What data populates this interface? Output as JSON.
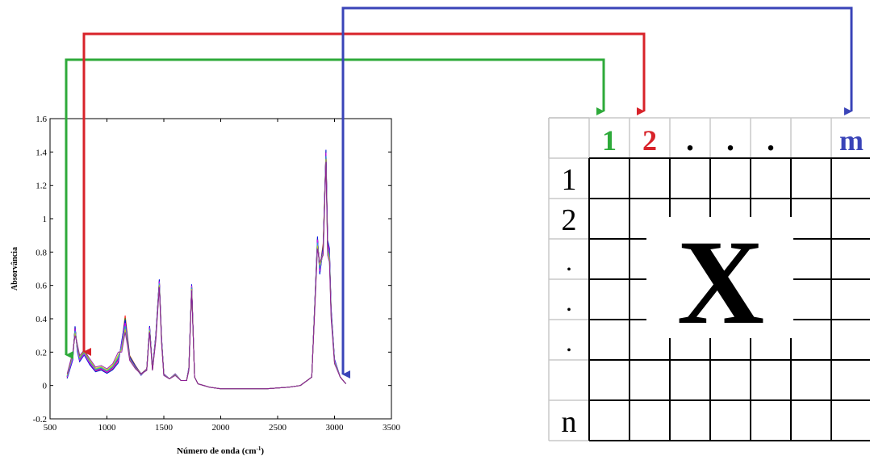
{
  "chart_data": {
    "type": "line",
    "xlabel": "Número de onda (cm",
    "xlabel_sup": "-1",
    "xlabel_close": ")",
    "ylabel": "Absorvância",
    "xlim": [
      500,
      3500
    ],
    "ylim": [
      -0.2,
      1.6
    ],
    "x_ticks": [
      500,
      1000,
      1500,
      2000,
      2500,
      3000,
      3500
    ],
    "y_ticks": [
      -0.2,
      0,
      0.2,
      0.4,
      0.6,
      0.8,
      1,
      1.2,
      1.4,
      1.6
    ],
    "x_tick_labels": [
      "500",
      "1000",
      "1500",
      "2000",
      "2500",
      "3000",
      "3500"
    ],
    "y_tick_labels": [
      "-0.2",
      "0",
      "0.2",
      "0.4",
      "0.6",
      "0.8",
      "1",
      "1.2",
      "1.4",
      "1.6"
    ],
    "grid": false,
    "series_colors": [
      "#ff0000",
      "#00aa00",
      "#0000ff",
      "#ff00ff",
      "#00cccc",
      "#cccc00",
      "#8800aa"
    ],
    "x": [
      650,
      700,
      720,
      740,
      760,
      800,
      850,
      900,
      950,
      1000,
      1050,
      1100,
      1130,
      1160,
      1180,
      1200,
      1250,
      1300,
      1350,
      1375,
      1400,
      1430,
      1460,
      1480,
      1500,
      1550,
      1600,
      1650,
      1700,
      1720,
      1745,
      1770,
      1800,
      1900,
      2000,
      2200,
      2400,
      2600,
      2700,
      2800,
      2850,
      2870,
      2900,
      2925,
      2940,
      2955,
      2970,
      3000,
      3050,
      3100
    ],
    "series": [
      {
        "values": [
          0.05,
          0.17,
          0.35,
          0.22,
          0.15,
          0.2,
          0.13,
          0.09,
          0.1,
          0.08,
          0.1,
          0.15,
          0.25,
          0.42,
          0.3,
          0.18,
          0.12,
          0.07,
          0.1,
          0.35,
          0.1,
          0.3,
          0.63,
          0.28,
          0.07,
          0.04,
          0.07,
          0.03,
          0.03,
          0.1,
          0.6,
          0.05,
          0.01,
          -0.01,
          -0.02,
          -0.02,
          -0.02,
          -0.01,
          0.0,
          0.05,
          0.88,
          0.7,
          0.85,
          1.4,
          0.85,
          0.8,
          0.45,
          0.15,
          0.05,
          0.01
        ]
      },
      {
        "values": [
          0.06,
          0.19,
          0.32,
          0.24,
          0.17,
          0.22,
          0.15,
          0.1,
          0.11,
          0.09,
          0.12,
          0.18,
          0.22,
          0.35,
          0.26,
          0.16,
          0.11,
          0.07,
          0.09,
          0.33,
          0.09,
          0.28,
          0.6,
          0.26,
          0.06,
          0.04,
          0.06,
          0.03,
          0.03,
          0.09,
          0.58,
          0.05,
          0.01,
          -0.01,
          -0.02,
          -0.02,
          -0.02,
          -0.01,
          0.0,
          0.05,
          0.84,
          0.72,
          0.8,
          1.36,
          0.8,
          0.76,
          0.42,
          0.14,
          0.05,
          0.01
        ]
      },
      {
        "values": [
          0.04,
          0.15,
          0.36,
          0.2,
          0.14,
          0.18,
          0.12,
          0.08,
          0.09,
          0.07,
          0.09,
          0.13,
          0.27,
          0.4,
          0.28,
          0.17,
          0.11,
          0.06,
          0.1,
          0.36,
          0.1,
          0.31,
          0.64,
          0.29,
          0.07,
          0.04,
          0.07,
          0.03,
          0.03,
          0.11,
          0.61,
          0.05,
          0.01,
          -0.01,
          -0.02,
          -0.02,
          -0.02,
          -0.01,
          0.0,
          0.05,
          0.9,
          0.66,
          0.82,
          1.42,
          0.88,
          0.83,
          0.47,
          0.16,
          0.05,
          0.01
        ]
      },
      {
        "values": [
          0.07,
          0.2,
          0.3,
          0.25,
          0.18,
          0.21,
          0.16,
          0.11,
          0.12,
          0.1,
          0.13,
          0.2,
          0.2,
          0.32,
          0.24,
          0.15,
          0.1,
          0.07,
          0.09,
          0.32,
          0.09,
          0.27,
          0.59,
          0.25,
          0.06,
          0.04,
          0.06,
          0.03,
          0.03,
          0.09,
          0.57,
          0.05,
          0.01,
          -0.01,
          -0.02,
          -0.02,
          -0.02,
          -0.01,
          0.0,
          0.05,
          0.82,
          0.74,
          0.78,
          1.34,
          0.78,
          0.74,
          0.4,
          0.13,
          0.05,
          0.01
        ]
      }
    ]
  },
  "matrix": {
    "column_labels": [
      "1",
      "2",
      ".",
      ".",
      ".",
      "",
      "m"
    ],
    "row_labels": [
      "1",
      "2",
      ".",
      ".",
      ".",
      "",
      "n"
    ],
    "center_label": "X",
    "column_label_colors": [
      "#2eaa3a",
      "#d8232a",
      "#000000",
      "#000000",
      "#000000",
      "#000000",
      "#3a44b8"
    ]
  },
  "arrows": [
    {
      "name": "green",
      "color": "#2eaa3a",
      "from_wavenumber": 650,
      "to_column": 1
    },
    {
      "name": "red",
      "color": "#d8232a",
      "from_wavenumber": 800,
      "to_column": 2
    },
    {
      "name": "blue",
      "color": "#3a44b8",
      "from_wavenumber": 3100,
      "to_column": "m"
    }
  ]
}
